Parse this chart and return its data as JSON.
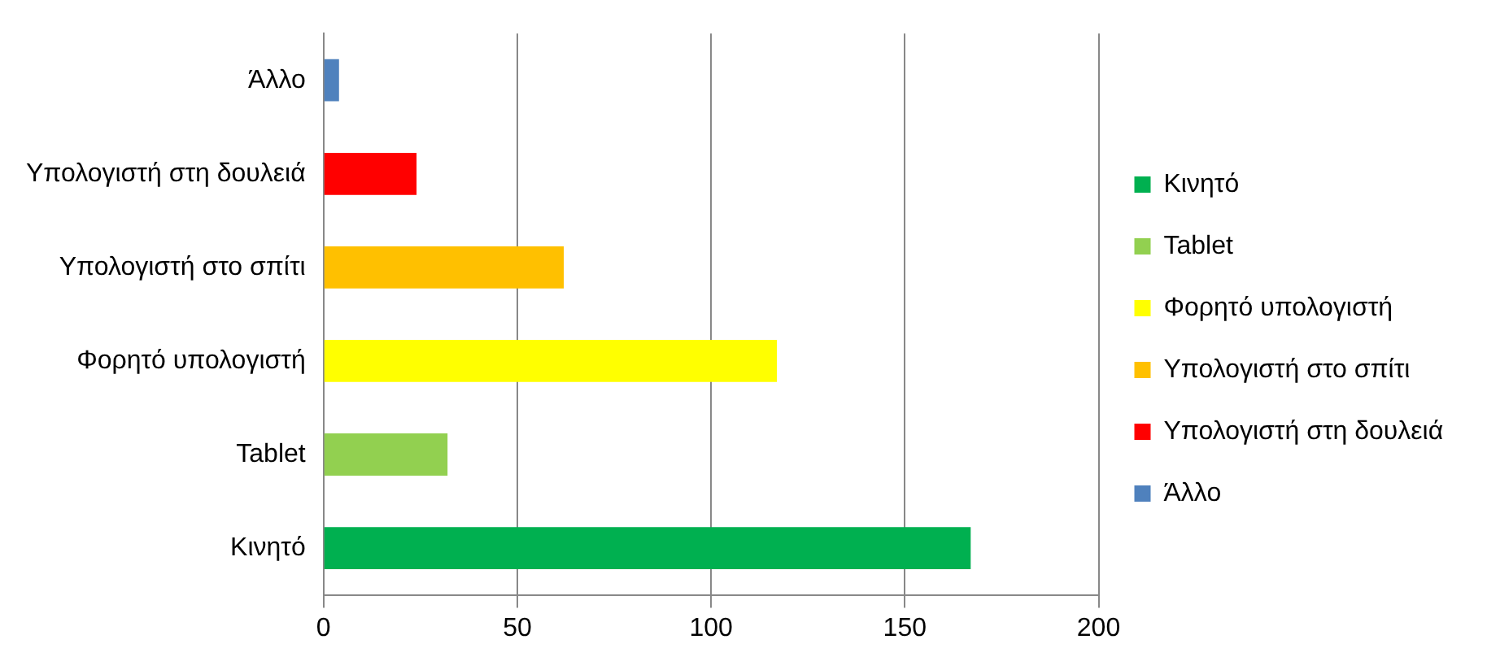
{
  "chart_data": {
    "type": "bar",
    "orientation": "horizontal",
    "categories": [
      "Άλλο",
      "Υπολογιστή στη δουλειά",
      "Υπολογιστή στο σπίτι",
      "Φορητό υπολογιστή",
      "Tablet",
      "Κινητό"
    ],
    "series": [
      {
        "name": "Κινητό",
        "color": "#00b050",
        "values": [
          null,
          null,
          null,
          null,
          null,
          167
        ]
      },
      {
        "name": "Tablet",
        "color": "#92d050",
        "values": [
          null,
          null,
          null,
          null,
          32,
          null
        ]
      },
      {
        "name": "Φορητό υπολογιστή",
        "color": "#ffff00",
        "values": [
          null,
          null,
          null,
          117,
          null,
          null
        ]
      },
      {
        "name": "Υπολογιστή στο σπίτι",
        "color": "#ffc000",
        "values": [
          null,
          null,
          62,
          null,
          null,
          null
        ]
      },
      {
        "name": "Υπολογιστή στη δουλειά",
        "color": "#ff0000",
        "values": [
          null,
          24,
          null,
          null,
          null,
          null
        ]
      },
      {
        "name": "Άλλο",
        "color": "#4f81bd",
        "values": [
          4,
          null,
          null,
          null,
          null,
          null
        ]
      }
    ],
    "xlim": [
      0,
      200
    ],
    "xticks": [
      0,
      50,
      100,
      150,
      200
    ],
    "grid": "x",
    "legend": "right"
  }
}
